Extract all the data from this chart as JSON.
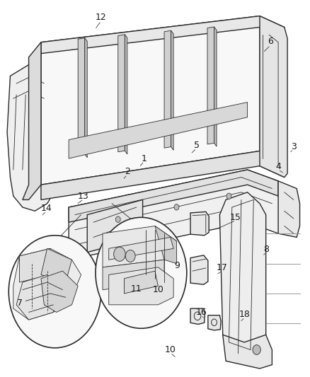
{
  "title": "",
  "background_color": "#ffffff",
  "line_color": "#2a2a2a",
  "label_color": "#1a1a1a",
  "figsize": [
    4.38,
    5.33
  ],
  "dpi": 100,
  "font_size": 9
}
